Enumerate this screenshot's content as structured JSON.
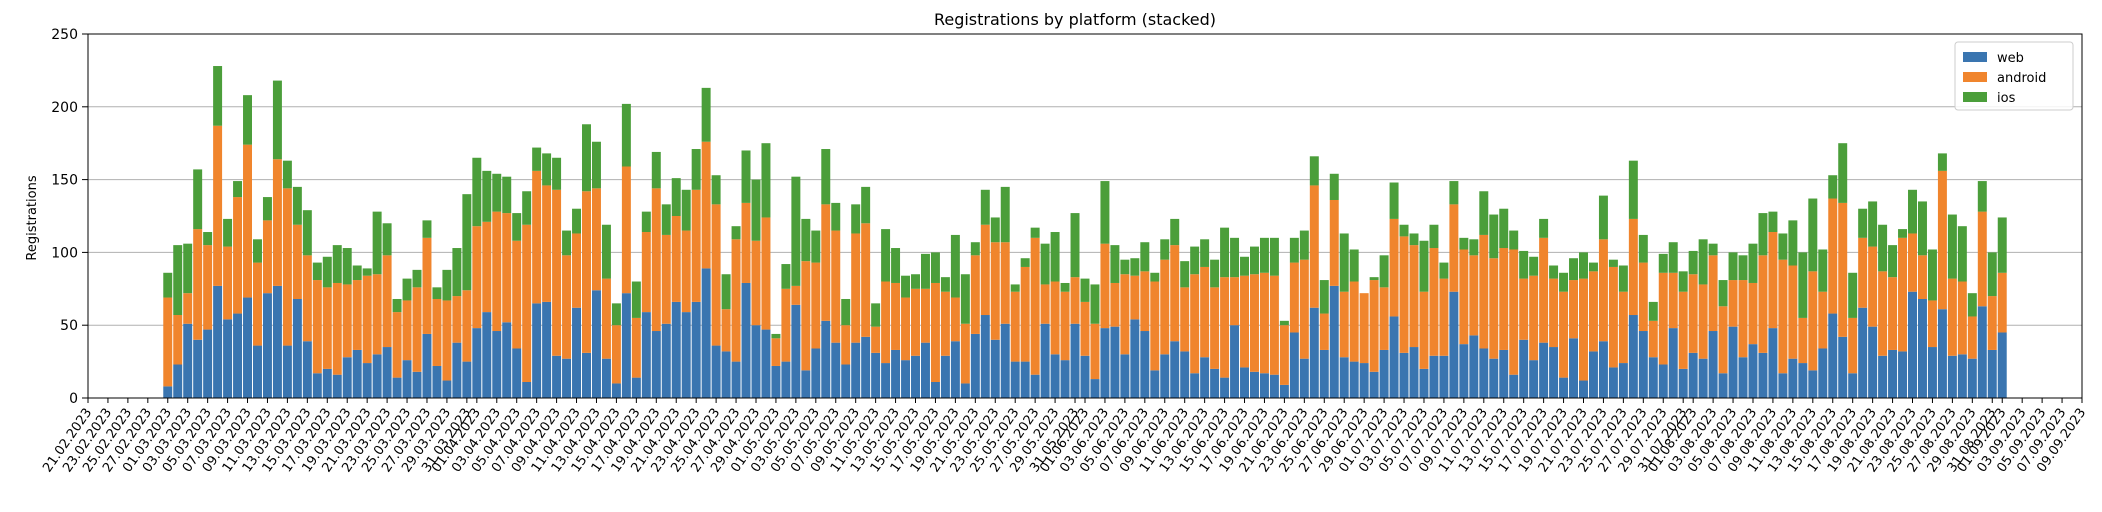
{
  "chart_data": {
    "type": "bar",
    "stacked": true,
    "title": "Registrations by platform (stacked)",
    "xlabel": "",
    "ylabel": "Registrations",
    "ylim": [
      0,
      250
    ],
    "yticks": [
      0,
      50,
      100,
      150,
      200,
      250
    ],
    "grid": "y",
    "legend_position": "top-right",
    "x_start": "2023-02-21",
    "x_end": "2023-09-09",
    "data_start": "2023-03-01",
    "data_end": "2023-08-31",
    "xtick_labels": [
      "21.02.2023",
      "23.02.2023",
      "25.02.2023",
      "27.02.2023",
      "01.03.2023",
      "03.03.2023",
      "05.03.2023",
      "07.03.2023",
      "09.03.2023",
      "11.03.2023",
      "13.03.2023",
      "15.03.2023",
      "17.03.2023",
      "19.03.2023",
      "21.03.2023",
      "23.03.2023",
      "25.03.2023",
      "27.03.2023",
      "29.03.2023",
      "31.03.2023",
      "01.04.2023",
      "03.04.2023",
      "05.04.2023",
      "07.04.2023",
      "09.04.2023",
      "11.04.2023",
      "13.04.2023",
      "15.04.2023",
      "17.04.2023",
      "19.04.2023",
      "21.04.2023",
      "23.04.2023",
      "25.04.2023",
      "27.04.2023",
      "29.04.2023",
      "01.05.2023",
      "03.05.2023",
      "05.05.2023",
      "07.05.2023",
      "09.05.2023",
      "11.05.2023",
      "13.05.2023",
      "15.05.2023",
      "17.05.2023",
      "19.05.2023",
      "21.05.2023",
      "23.05.2023",
      "25.05.2023",
      "27.05.2023",
      "29.05.2023",
      "31.05.2023",
      "01.06.2023",
      "03.06.2023",
      "05.06.2023",
      "07.06.2023",
      "09.06.2023",
      "11.06.2023",
      "13.06.2023",
      "15.06.2023",
      "17.06.2023",
      "19.06.2023",
      "21.06.2023",
      "23.06.2023",
      "25.06.2023",
      "27.06.2023",
      "29.06.2023",
      "01.07.2023",
      "03.07.2023",
      "05.07.2023",
      "07.07.2023",
      "09.07.2023",
      "11.07.2023",
      "13.07.2023",
      "15.07.2023",
      "17.07.2023",
      "19.07.2023",
      "21.07.2023",
      "23.07.2023",
      "25.07.2023",
      "27.07.2023",
      "29.07.2023",
      "31.07.2023",
      "01.08.2023",
      "03.08.2023",
      "05.08.2023",
      "07.08.2023",
      "09.08.2023",
      "11.08.2023",
      "13.08.2023",
      "15.08.2023",
      "17.08.2023",
      "19.08.2023",
      "21.08.2023",
      "23.08.2023",
      "25.08.2023",
      "27.08.2023",
      "29.08.2023",
      "31.08.2023",
      "01.09.2023",
      "03.09.2023",
      "05.09.2023",
      "07.09.2023",
      "09.09.2023"
    ],
    "series": [
      {
        "name": "web",
        "color": "#3a75b0",
        "values": [
          8,
          23,
          51,
          40,
          47,
          77,
          54,
          58,
          69,
          36,
          72,
          77,
          36,
          68,
          39,
          17,
          20,
          16,
          28,
          33,
          24,
          30,
          35,
          14,
          26,
          18,
          44,
          22,
          12,
          38,
          25,
          48,
          59,
          46,
          52,
          34,
          11,
          65,
          66,
          29,
          27,
          62,
          31,
          74,
          27,
          10,
          72,
          14,
          59,
          46,
          51,
          66,
          59,
          66,
          89,
          36,
          32,
          25,
          79,
          50,
          47,
          22,
          25,
          64,
          19,
          34,
          53,
          38,
          23,
          38,
          42,
          31,
          24,
          33,
          26,
          29,
          38,
          11,
          29,
          39,
          10,
          44,
          57,
          40,
          51,
          25,
          25,
          16,
          51,
          30,
          26,
          51,
          29,
          13,
          48,
          49,
          30,
          54,
          46,
          19,
          30,
          39,
          32,
          17,
          28,
          20,
          14,
          50,
          21,
          18,
          17,
          16,
          9,
          45,
          27,
          62,
          33,
          77,
          28,
          25,
          24,
          18,
          33,
          56,
          31,
          35,
          20,
          29,
          29,
          73,
          37,
          43,
          34,
          27,
          33,
          16,
          40,
          26,
          38,
          35,
          14,
          41,
          12,
          32,
          39,
          21,
          24,
          57,
          46,
          28,
          23,
          48,
          20,
          31,
          27,
          46,
          17,
          49,
          28,
          37,
          31,
          48,
          17,
          27,
          24,
          19,
          34,
          58,
          42,
          17,
          62,
          49,
          29,
          33,
          32,
          73,
          68,
          35,
          61,
          29,
          30,
          27,
          63,
          33,
          45
        ]
      },
      {
        "name": "android",
        "color": "#f0852d",
        "values": [
          61,
          34,
          21,
          76,
          58,
          110,
          50,
          80,
          105,
          57,
          50,
          87,
          108,
          51,
          59,
          64,
          56,
          63,
          50,
          48,
          60,
          55,
          63,
          45,
          41,
          58,
          66,
          46,
          55,
          32,
          49,
          70,
          62,
          82,
          75,
          74,
          108,
          91,
          80,
          114,
          71,
          51,
          111,
          70,
          55,
          40,
          87,
          41,
          55,
          98,
          61,
          59,
          56,
          77,
          87,
          97,
          29,
          84,
          55,
          58,
          77,
          19,
          50,
          13,
          75,
          59,
          80,
          77,
          27,
          75,
          78,
          18,
          56,
          46,
          43,
          46,
          37,
          68,
          44,
          30,
          41,
          54,
          62,
          67,
          56,
          48,
          65,
          94,
          27,
          50,
          47,
          32,
          37,
          38,
          58,
          30,
          55,
          30,
          41,
          61,
          65,
          66,
          44,
          68,
          62,
          56,
          69,
          33,
          63,
          67,
          69,
          68,
          41,
          48,
          68,
          84,
          25,
          59,
          45,
          55,
          48,
          63,
          43,
          67,
          80,
          70,
          53,
          74,
          53,
          60,
          65,
          55,
          78,
          69,
          70,
          86,
          42,
          58,
          72,
          47,
          59,
          40,
          70,
          55,
          70,
          69,
          49,
          66,
          47,
          25,
          63,
          38,
          53,
          54,
          51,
          52,
          46,
          32,
          53,
          42,
          67,
          66,
          78,
          64,
          31,
          68,
          39,
          79,
          92,
          38,
          48,
          55,
          58,
          50,
          78,
          40,
          30,
          32,
          95,
          53,
          50,
          29,
          65,
          37,
          41
        ]
      },
      {
        "name": "ios",
        "color": "#4b9e3a",
        "values": [
          17,
          48,
          34,
          41,
          9,
          41,
          19,
          11,
          34,
          16,
          16,
          54,
          19,
          26,
          31,
          12,
          21,
          26,
          25,
          10,
          5,
          43,
          22,
          9,
          15,
          12,
          12,
          8,
          21,
          33,
          66,
          47,
          35,
          26,
          25,
          19,
          23,
          16,
          22,
          22,
          17,
          17,
          46,
          32,
          37,
          15,
          43,
          25,
          14,
          25,
          21,
          26,
          28,
          28,
          37,
          20,
          24,
          9,
          36,
          42,
          51,
          3,
          17,
          75,
          29,
          22,
          38,
          19,
          18,
          20,
          25,
          16,
          36,
          24,
          15,
          10,
          24,
          21,
          10,
          43,
          34,
          9,
          24,
          17,
          38,
          5,
          6,
          7,
          28,
          34,
          6,
          44,
          16,
          27,
          43,
          26,
          10,
          12,
          20,
          6,
          14,
          18,
          18,
          19,
          19,
          19,
          34,
          27,
          13,
          19,
          24,
          26,
          3,
          17,
          20,
          20,
          23,
          18,
          40,
          22,
          0,
          2,
          22,
          25,
          8,
          8,
          35,
          16,
          11,
          16,
          8,
          11,
          30,
          30,
          27,
          13,
          19,
          13,
          13,
          9,
          13,
          15,
          18,
          6,
          30,
          5,
          18,
          40,
          19,
          13,
          13,
          21,
          14,
          16,
          31,
          8,
          18,
          19,
          17,
          27,
          29,
          14,
          18,
          31,
          45,
          50,
          29,
          16,
          41,
          31,
          20,
          31,
          32,
          22,
          6,
          30,
          37,
          35,
          12,
          44,
          38,
          16,
          21,
          30,
          38
        ]
      }
    ]
  }
}
